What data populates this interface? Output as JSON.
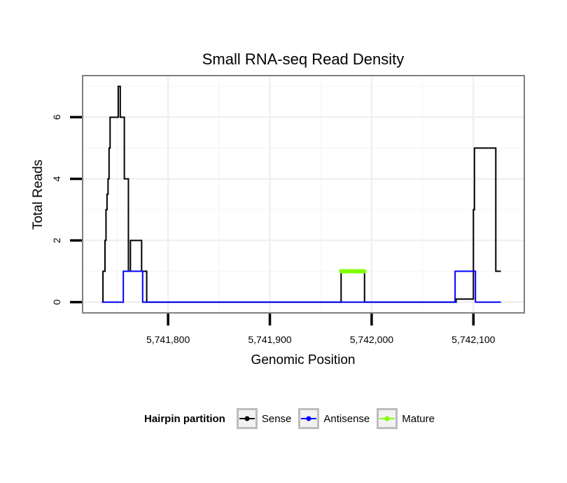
{
  "chart_data": {
    "type": "line",
    "title": "Small RNA-seq Read Density",
    "xlabel": "Genomic Position",
    "ylabel": "Total Reads",
    "xlim": [
      5741716,
      5742150
    ],
    "ylim": [
      -0.35,
      7.35
    ],
    "x_ticks": [
      5741800,
      5741900,
      5742000,
      5742100
    ],
    "x_tick_labels": [
      "5,741,800",
      "5,741,900",
      "5,742,000",
      "5,742,100"
    ],
    "y_ticks": [
      0,
      2,
      4,
      6
    ],
    "y_tick_labels": [
      "0",
      "2",
      "4",
      "6"
    ],
    "grid": true,
    "legend_position": "bottom",
    "legend_title": "Hairpin partition",
    "series": [
      {
        "name": "Sense",
        "color": "#000000",
        "x": [
          5741735,
          5741736,
          5741736,
          5741738,
          5741738,
          5741739,
          5741739,
          5741740,
          5741740,
          5741741,
          5741741,
          5741742,
          5741742,
          5741743,
          5741743,
          5741745,
          5741745,
          5741751,
          5741751,
          5741753,
          5741753,
          5741754,
          5741754,
          5741757,
          5741757,
          5741761,
          5741761,
          5741763,
          5741763,
          5741774,
          5741774,
          5741779,
          5741779,
          5741970,
          5741970,
          5741993,
          5741993,
          5742083,
          5742083,
          5742100,
          5742100,
          5742101,
          5742101,
          5742122,
          5742122,
          5742127
        ],
        "y": [
          0,
          0,
          1,
          1,
          2,
          2,
          3,
          3,
          3.5,
          3.5,
          4,
          4,
          5,
          5,
          6,
          6,
          6,
          6,
          7,
          7,
          6,
          6,
          6,
          6,
          4,
          4,
          1,
          1,
          2,
          2,
          1,
          1,
          0,
          0,
          1,
          1,
          0,
          0,
          0.1,
          0.1,
          3,
          3,
          5,
          5,
          1,
          1
        ]
      },
      {
        "name": "Antisense",
        "color": "#0000ff",
        "x": [
          5741735,
          5741756,
          5741756,
          5741775,
          5741775,
          5742082,
          5742082,
          5742102,
          5742102,
          5742127
        ],
        "y": [
          0,
          0,
          1,
          1,
          0,
          0,
          1,
          1,
          0,
          0
        ]
      },
      {
        "name": "Mature",
        "color": "#80ff00",
        "x": [
          5741970,
          5741993
        ],
        "y": [
          1,
          1
        ]
      }
    ]
  }
}
